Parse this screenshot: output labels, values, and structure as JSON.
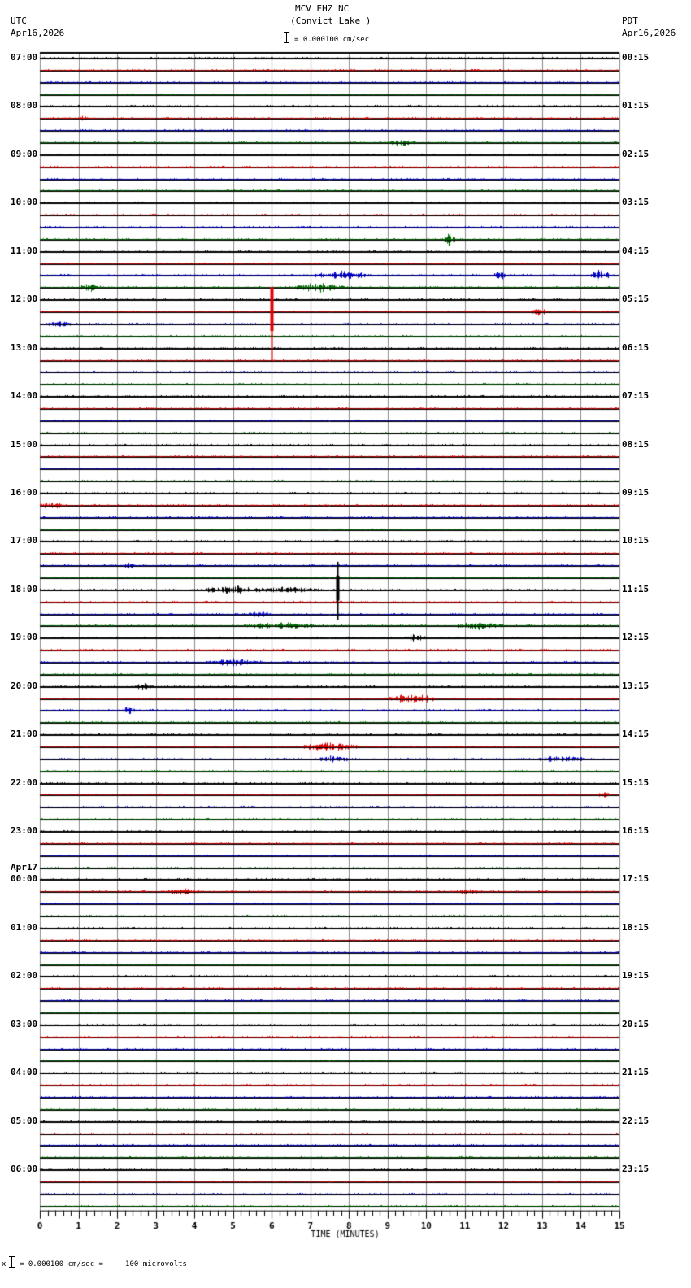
{
  "header": {
    "station": "MCV EHZ NC",
    "location": "(Convict Lake )",
    "scale_text": "= 0.000100 cm/sec",
    "left_tz": "UTC",
    "left_date": "Apr16,2026",
    "right_tz": "PDT",
    "right_date": "Apr16,2026"
  },
  "footer": {
    "scale_prefix": "x",
    "scale_text": "= 0.000100 cm/sec =     100 microvolts"
  },
  "chart_data": {
    "type": "line",
    "title": "MCV EHZ NC (Convict Lake )",
    "subtitle": "scale bar = 0.000100 cm/sec",
    "xlabel": "TIME (MINUTES)",
    "ylabel": "",
    "xlim": [
      0,
      15
    ],
    "x_ticks": [
      0,
      1,
      2,
      3,
      4,
      5,
      6,
      7,
      8,
      9,
      10,
      11,
      12,
      13,
      14,
      15
    ],
    "minor_ticks_per_minute": 5,
    "grid": true,
    "rows_per_hour": 4,
    "trace_colors": [
      "#000000",
      "#dd0000",
      "#0000cc",
      "#006600"
    ],
    "left_labels": [
      {
        "row": 0,
        "text": "07:00"
      },
      {
        "row": 4,
        "text": "08:00"
      },
      {
        "row": 8,
        "text": "09:00"
      },
      {
        "row": 12,
        "text": "10:00"
      },
      {
        "row": 16,
        "text": "11:00"
      },
      {
        "row": 20,
        "text": "12:00"
      },
      {
        "row": 24,
        "text": "13:00"
      },
      {
        "row": 28,
        "text": "14:00"
      },
      {
        "row": 32,
        "text": "15:00"
      },
      {
        "row": 36,
        "text": "16:00"
      },
      {
        "row": 40,
        "text": "17:00"
      },
      {
        "row": 44,
        "text": "18:00"
      },
      {
        "row": 48,
        "text": "19:00"
      },
      {
        "row": 52,
        "text": "20:00"
      },
      {
        "row": 56,
        "text": "21:00"
      },
      {
        "row": 60,
        "text": "22:00"
      },
      {
        "row": 64,
        "text": "23:00"
      },
      {
        "row": 68,
        "text": "00:00",
        "date": "Apr17"
      },
      {
        "row": 72,
        "text": "01:00"
      },
      {
        "row": 76,
        "text": "02:00"
      },
      {
        "row": 80,
        "text": "03:00"
      },
      {
        "row": 84,
        "text": "04:00"
      },
      {
        "row": 88,
        "text": "05:00"
      },
      {
        "row": 92,
        "text": "06:00"
      }
    ],
    "right_labels": [
      {
        "row": 0,
        "text": "00:15"
      },
      {
        "row": 4,
        "text": "01:15"
      },
      {
        "row": 8,
        "text": "02:15"
      },
      {
        "row": 12,
        "text": "03:15"
      },
      {
        "row": 16,
        "text": "04:15"
      },
      {
        "row": 20,
        "text": "05:15"
      },
      {
        "row": 24,
        "text": "06:15"
      },
      {
        "row": 28,
        "text": "07:15"
      },
      {
        "row": 32,
        "text": "08:15"
      },
      {
        "row": 36,
        "text": "09:15"
      },
      {
        "row": 40,
        "text": "10:15"
      },
      {
        "row": 44,
        "text": "11:15"
      },
      {
        "row": 48,
        "text": "12:15"
      },
      {
        "row": 52,
        "text": "13:15"
      },
      {
        "row": 56,
        "text": "14:15"
      },
      {
        "row": 60,
        "text": "15:15"
      },
      {
        "row": 64,
        "text": "16:15"
      },
      {
        "row": 68,
        "text": "17:15"
      },
      {
        "row": 72,
        "text": "18:15"
      },
      {
        "row": 76,
        "text": "19:15"
      },
      {
        "row": 80,
        "text": "20:15"
      },
      {
        "row": 84,
        "text": "21:15"
      },
      {
        "row": 88,
        "text": "22:15"
      },
      {
        "row": 92,
        "text": "23:15"
      }
    ],
    "total_rows": 96,
    "events": [
      {
        "row": 5,
        "minute": 1.1,
        "amp": 4,
        "dur": 0.2
      },
      {
        "row": 7,
        "minute": 9.3,
        "amp": 5,
        "dur": 0.8
      },
      {
        "row": 15,
        "minute": 10.6,
        "amp": 9,
        "dur": 0.3
      },
      {
        "row": 18,
        "minute": 7.8,
        "amp": 6,
        "dur": 1.5
      },
      {
        "row": 18,
        "minute": 11.9,
        "amp": 7,
        "dur": 0.3
      },
      {
        "row": 18,
        "minute": 14.5,
        "amp": 9,
        "dur": 0.5
      },
      {
        "row": 19,
        "minute": 1.3,
        "amp": 6,
        "dur": 0.6
      },
      {
        "row": 19,
        "minute": 7.2,
        "amp": 7,
        "dur": 1.4
      },
      {
        "row": 21,
        "minute": 6.0,
        "amp": 60,
        "dur": 0.05,
        "spike": true
      },
      {
        "row": 21,
        "minute": 12.9,
        "amp": 5,
        "dur": 0.5
      },
      {
        "row": 22,
        "minute": 0.5,
        "amp": 4,
        "dur": 0.7
      },
      {
        "row": 37,
        "minute": 0.3,
        "amp": 5,
        "dur": 0.8
      },
      {
        "row": 42,
        "minute": 2.3,
        "amp": 5,
        "dur": 0.3
      },
      {
        "row": 44,
        "minute": 7.7,
        "amp": 34,
        "dur": 0.25,
        "spike": true
      },
      {
        "row": 44,
        "minute": 5.0,
        "amp": 6,
        "dur": 1.5
      },
      {
        "row": 44,
        "minute": 6.5,
        "amp": 5,
        "dur": 1.5
      },
      {
        "row": 46,
        "minute": 5.7,
        "amp": 5,
        "dur": 0.6
      },
      {
        "row": 47,
        "minute": 6.2,
        "amp": 5,
        "dur": 1.8
      },
      {
        "row": 47,
        "minute": 11.4,
        "amp": 6,
        "dur": 1.2
      },
      {
        "row": 48,
        "minute": 9.7,
        "amp": 5,
        "dur": 0.6
      },
      {
        "row": 50,
        "minute": 5.0,
        "amp": 5,
        "dur": 1.5
      },
      {
        "row": 52,
        "minute": 2.7,
        "amp": 5,
        "dur": 0.5
      },
      {
        "row": 53,
        "minute": 9.6,
        "amp": 7,
        "dur": 1.2
      },
      {
        "row": 54,
        "minute": 2.3,
        "amp": 6,
        "dur": 0.3
      },
      {
        "row": 57,
        "minute": 7.5,
        "amp": 6,
        "dur": 1.5
      },
      {
        "row": 58,
        "minute": 7.6,
        "amp": 5,
        "dur": 0.8
      },
      {
        "row": 58,
        "minute": 13.5,
        "amp": 5,
        "dur": 1.2
      },
      {
        "row": 61,
        "minute": 14.6,
        "amp": 5,
        "dur": 0.4
      },
      {
        "row": 69,
        "minute": 3.7,
        "amp": 5,
        "dur": 0.8
      },
      {
        "row": 69,
        "minute": 11.0,
        "amp": 4,
        "dur": 0.8
      }
    ]
  }
}
